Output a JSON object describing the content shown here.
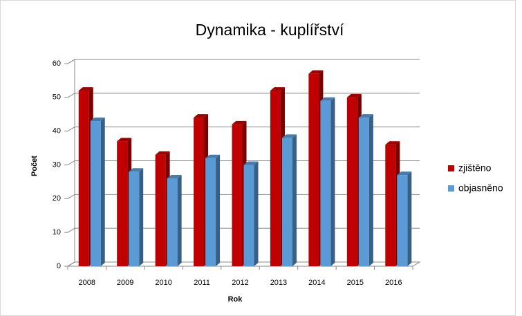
{
  "chart_data": {
    "type": "bar3d",
    "title": "Dynamika - kuplířství",
    "xlabel": "Rok",
    "ylabel": "Počet",
    "categories": [
      "2008",
      "2009",
      "2010",
      "2011",
      "2012",
      "2013",
      "2014",
      "2015",
      "2016"
    ],
    "series": [
      {
        "name": "zjištěno",
        "color": "#c00000",
        "values": [
          52,
          37,
          33,
          44,
          42,
          52,
          57,
          50,
          36
        ]
      },
      {
        "name": "objasněno",
        "color": "#5b9bd5",
        "values": [
          43,
          28,
          26,
          32,
          30,
          38,
          49,
          44,
          27
        ]
      }
    ],
    "ylim": [
      0,
      60
    ],
    "yticks": [
      0,
      10,
      20,
      30,
      40,
      50,
      60
    ],
    "grid": true,
    "legend": "right"
  }
}
